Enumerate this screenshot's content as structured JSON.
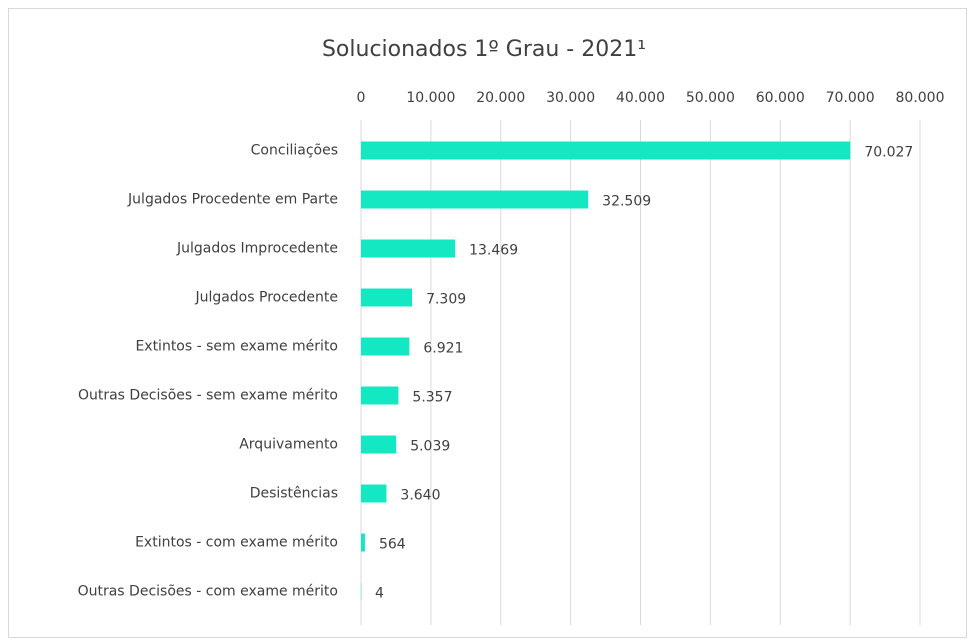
{
  "chart_data": {
    "type": "bar",
    "orientation": "horizontal",
    "title": "Solucionados 1º Grau - 2021¹",
    "categories": [
      "Conciliações",
      "Julgados Procedente em Parte",
      "Julgados Improcedente",
      "Julgados Procedente",
      "Extintos - sem exame mérito",
      "Outras Decisões - sem exame mérito",
      "Arquivamento",
      "Desistências",
      "Extintos - com exame mérito",
      "Outras Decisões - com exame mérito"
    ],
    "values": [
      70027,
      32509,
      13469,
      7309,
      6921,
      5357,
      5039,
      3640,
      564,
      4
    ],
    "value_labels": [
      "70.027",
      "32.509",
      "13.469",
      "7.309",
      "6.921",
      "5.357",
      "5.039",
      "3.640",
      "564",
      "4"
    ],
    "color": "#14e8c2",
    "xlim": [
      0,
      80000
    ],
    "xticks": [
      0,
      {
        "value": 10000,
        "label": "10.000"
      },
      {
        "value": 20000,
        "label": "20.000"
      },
      {
        "value": 30000,
        "label": "30.000"
      },
      {
        "value": 40000,
        "label": "40.000"
      },
      {
        "value": 50000,
        "label": "50.000"
      },
      {
        "value": 60000,
        "label": "60.000"
      },
      {
        "value": 70000,
        "label": "70.000"
      },
      {
        "value": 80000,
        "label": "80.000"
      }
    ],
    "grid": true
  }
}
